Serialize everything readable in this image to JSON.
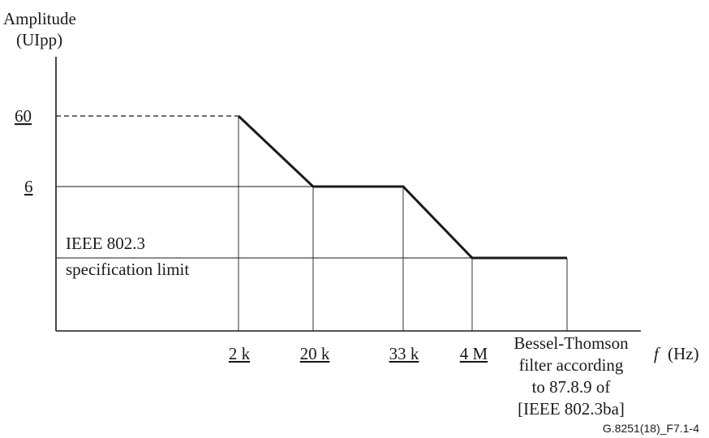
{
  "chart_data": {
    "type": "line",
    "y_axis_label_lines": [
      "Amplitude",
      "(UIpp)"
    ],
    "x_axis_label_italic": "f",
    "x_axis_label_unit": "(Hz)",
    "y_tick_labels": [
      "60",
      "6"
    ],
    "x_tick_labels": [
      "2 k",
      "20 k",
      "33 k",
      "4 M"
    ],
    "filter_note_lines": [
      "Bessel-Thomson",
      "filter according",
      "to 87.8.9 of",
      "[IEEE 802.3ba]"
    ],
    "spec_limit_lines": [
      "IEEE 802.3",
      "specification limit"
    ],
    "figure_id": "G.8251(18)_F7.1-4",
    "mask_points": [
      {
        "x": "2 k",
        "y": "60"
      },
      {
        "x": "20 k",
        "y": "6"
      },
      {
        "x": "33 k",
        "y": "6"
      },
      {
        "x": "4 M",
        "y": "IEEE 802.3 specification limit"
      },
      {
        "x": "Bessel-Thomson filter according to 87.8.9 of [IEEE 802.3ba]",
        "y": "IEEE 802.3 specification limit"
      }
    ]
  }
}
